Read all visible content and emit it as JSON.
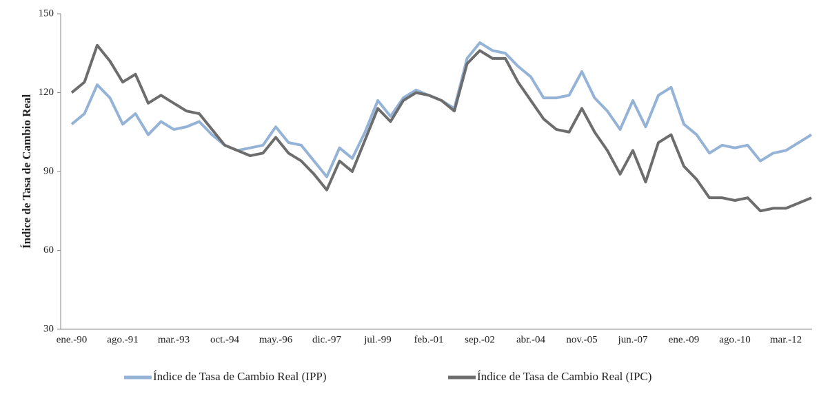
{
  "chart_data": {
    "type": "line",
    "y_label": "Índice de Tasa de Cambio Real",
    "categories": [
      "ene.-90",
      null,
      null,
      null,
      "ago.-91",
      null,
      null,
      null,
      "mar.-93",
      null,
      null,
      null,
      "oct.-94",
      null,
      null,
      null,
      "may.-96",
      null,
      null,
      null,
      "dic.-97",
      null,
      null,
      null,
      "jul.-99",
      null,
      null,
      null,
      "feb.-01",
      null,
      null,
      null,
      "sep.-02",
      null,
      null,
      null,
      "abr.-04",
      null,
      null,
      null,
      "nov.-05",
      null,
      null,
      null,
      "jun.-07",
      null,
      null,
      null,
      "ene.-09",
      null,
      null,
      null,
      "ago.-10",
      null,
      null,
      null,
      "mar.-12",
      null,
      null
    ],
    "series": [
      {
        "name": "Índice de Tasa de Cambio Real (IPP)",
        "color": "#95b3d7",
        "values": [
          108,
          112,
          123,
          118,
          108,
          112,
          104,
          109,
          106,
          107,
          109,
          104,
          100,
          98,
          99,
          100,
          107,
          101,
          100,
          94,
          88,
          99,
          95,
          105,
          117,
          111,
          118,
          121,
          119,
          117,
          114,
          133,
          139,
          136,
          135,
          130,
          126,
          118,
          118,
          119,
          128,
          118,
          113,
          106,
          117,
          107,
          119,
          122,
          108,
          104,
          97,
          100,
          99,
          100,
          94,
          97,
          98,
          101,
          104
        ]
      },
      {
        "name": "Índice de Tasa de Cambio Real (IPC)",
        "color": "#6d6d6d",
        "values": [
          120,
          124,
          138,
          132,
          124,
          127,
          116,
          119,
          116,
          113,
          112,
          106,
          100,
          98,
          96,
          97,
          103,
          97,
          94,
          89,
          83,
          94,
          90,
          102,
          114,
          109,
          117,
          120,
          119,
          117,
          113,
          131,
          136,
          133,
          133,
          124,
          117,
          110,
          106,
          105,
          114,
          105,
          98,
          89,
          98,
          86,
          101,
          104,
          92,
          87,
          80,
          80,
          79,
          80,
          75,
          76,
          76,
          78,
          80
        ]
      }
    ],
    "ylim": [
      30,
      150
    ],
    "yticks": [
      30,
      60,
      90,
      120,
      150
    ],
    "grid": false
  }
}
